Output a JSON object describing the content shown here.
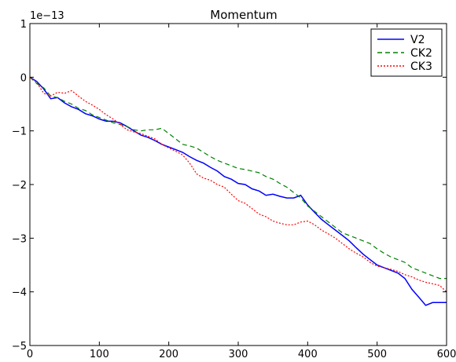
{
  "chart_data": {
    "type": "line",
    "title": "Momentum",
    "offset_label": "1e−13",
    "xlabel": "",
    "ylabel": "",
    "xlim": [
      0,
      600
    ],
    "ylim": [
      -5,
      1
    ],
    "x_ticks": [
      0,
      100,
      200,
      300,
      400,
      500,
      600
    ],
    "y_ticks": [
      -5,
      -4,
      -3,
      -2,
      -1,
      0,
      1
    ],
    "x_tick_labels": [
      "0",
      "100",
      "200",
      "300",
      "400",
      "500",
      "600"
    ],
    "y_tick_labels": [
      "−5",
      "−4",
      "−3",
      "−2",
      "−1",
      "0",
      "1"
    ],
    "grid": false,
    "legend_position": "top-right",
    "series": [
      {
        "name": "V2",
        "color": "#0000ff",
        "dash": "solid",
        "x": [
          0,
          10,
          20,
          30,
          40,
          50,
          60,
          70,
          80,
          90,
          100,
          110,
          120,
          130,
          140,
          150,
          160,
          170,
          180,
          190,
          200,
          210,
          220,
          230,
          240,
          250,
          260,
          270,
          280,
          290,
          300,
          310,
          320,
          330,
          340,
          350,
          360,
          370,
          380,
          390,
          400,
          410,
          420,
          430,
          440,
          450,
          460,
          470,
          480,
          490,
          500,
          510,
          520,
          530,
          540,
          550,
          560,
          570,
          580,
          590,
          600
        ],
        "y": [
          0,
          -0.08,
          -0.22,
          -0.4,
          -0.38,
          -0.48,
          -0.55,
          -0.6,
          -0.68,
          -0.72,
          -0.78,
          -0.82,
          -0.82,
          -0.85,
          -0.92,
          -1.0,
          -1.08,
          -1.12,
          -1.18,
          -1.25,
          -1.3,
          -1.35,
          -1.4,
          -1.48,
          -1.55,
          -1.6,
          -1.68,
          -1.75,
          -1.85,
          -1.9,
          -1.98,
          -2.0,
          -2.08,
          -2.12,
          -2.2,
          -2.18,
          -2.22,
          -2.25,
          -2.25,
          -2.2,
          -2.38,
          -2.52,
          -2.65,
          -2.75,
          -2.85,
          -2.95,
          -3.05,
          -3.18,
          -3.3,
          -3.4,
          -3.5,
          -3.55,
          -3.6,
          -3.65,
          -3.75,
          -3.95,
          -4.1,
          -4.25,
          -4.2,
          -4.2,
          -4.2
        ]
      },
      {
        "name": "CK2",
        "color": "#008000",
        "dash": "dashed",
        "x": [
          0,
          10,
          20,
          30,
          40,
          50,
          60,
          70,
          80,
          90,
          100,
          110,
          120,
          130,
          140,
          150,
          160,
          170,
          180,
          190,
          200,
          210,
          220,
          230,
          240,
          250,
          260,
          270,
          280,
          290,
          300,
          310,
          320,
          330,
          340,
          350,
          360,
          370,
          380,
          390,
          400,
          410,
          420,
          430,
          440,
          450,
          460,
          470,
          480,
          490,
          500,
          510,
          520,
          530,
          540,
          550,
          560,
          570,
          580,
          590,
          600
        ],
        "y": [
          0,
          -0.12,
          -0.2,
          -0.35,
          -0.38,
          -0.45,
          -0.5,
          -0.58,
          -0.62,
          -0.7,
          -0.75,
          -0.8,
          -0.85,
          -0.88,
          -0.92,
          -0.98,
          -1.0,
          -0.98,
          -0.98,
          -0.95,
          -1.05,
          -1.15,
          -1.25,
          -1.28,
          -1.32,
          -1.4,
          -1.48,
          -1.55,
          -1.6,
          -1.65,
          -1.7,
          -1.72,
          -1.75,
          -1.78,
          -1.85,
          -1.9,
          -1.98,
          -2.05,
          -2.15,
          -2.25,
          -2.4,
          -2.5,
          -2.6,
          -2.7,
          -2.8,
          -2.9,
          -2.95,
          -3.0,
          -3.05,
          -3.1,
          -3.2,
          -3.28,
          -3.35,
          -3.4,
          -3.45,
          -3.55,
          -3.6,
          -3.65,
          -3.7,
          -3.75,
          -3.75
        ]
      },
      {
        "name": "CK3",
        "color": "#ff0000",
        "dash": "dotted",
        "x": [
          0,
          10,
          20,
          30,
          40,
          50,
          60,
          70,
          80,
          90,
          100,
          110,
          120,
          130,
          140,
          150,
          160,
          170,
          180,
          190,
          200,
          210,
          220,
          230,
          240,
          250,
          260,
          270,
          280,
          290,
          300,
          310,
          320,
          330,
          340,
          350,
          360,
          370,
          380,
          390,
          400,
          410,
          420,
          430,
          440,
          450,
          460,
          470,
          480,
          490,
          500,
          510,
          520,
          530,
          540,
          550,
          560,
          570,
          580,
          590,
          600
        ],
        "y": [
          0,
          -0.1,
          -0.3,
          -0.35,
          -0.28,
          -0.3,
          -0.25,
          -0.35,
          -0.45,
          -0.52,
          -0.6,
          -0.7,
          -0.78,
          -0.88,
          -0.98,
          -1.02,
          -1.05,
          -1.1,
          -1.15,
          -1.25,
          -1.32,
          -1.38,
          -1.45,
          -1.6,
          -1.8,
          -1.88,
          -1.92,
          -2.0,
          -2.05,
          -2.18,
          -2.3,
          -2.35,
          -2.45,
          -2.55,
          -2.6,
          -2.68,
          -2.72,
          -2.75,
          -2.75,
          -2.7,
          -2.68,
          -2.75,
          -2.85,
          -2.92,
          -3.0,
          -3.1,
          -3.2,
          -3.28,
          -3.35,
          -3.45,
          -3.52,
          -3.55,
          -3.58,
          -3.62,
          -3.68,
          -3.72,
          -3.78,
          -3.82,
          -3.85,
          -3.88,
          -4.0
        ]
      }
    ]
  }
}
